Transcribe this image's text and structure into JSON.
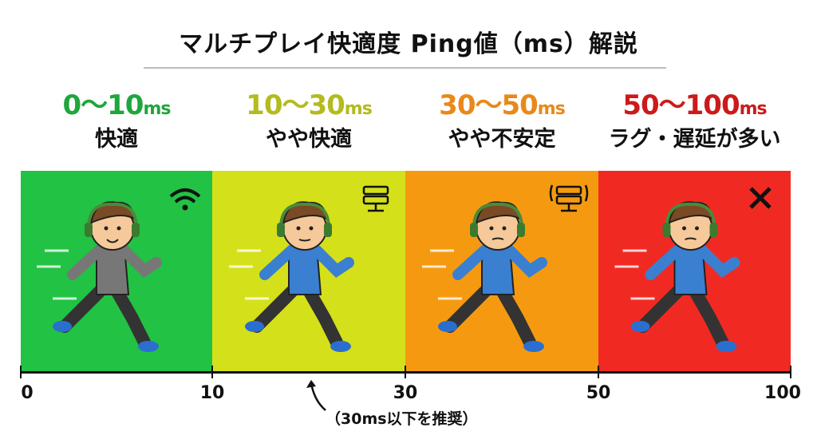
{
  "title": "マルチプレイ快適度 Ping値（ms）解説",
  "zones": [
    {
      "range": "0〜10",
      "unit": "ms",
      "label": "快適",
      "color": "#22c244",
      "text_color": "#1fa63c",
      "icon": "wifi-icon",
      "shirt": "#777777"
    },
    {
      "range": "10〜30",
      "unit": "ms",
      "label": "やや快適",
      "color": "#d4e01a",
      "text_color": "#b3bb1e",
      "icon": "server-icon",
      "shirt": "#3a7fd0"
    },
    {
      "range": "30〜50",
      "unit": "ms",
      "label": "やや不安定",
      "color": "#f59a10",
      "text_color": "#e8891a",
      "icon": "server-signal-icon",
      "shirt": "#3a7fd0"
    },
    {
      "range": "50〜100",
      "unit": "ms",
      "label": "ラグ・遅延が多い",
      "color": "#f02a22",
      "text_color": "#cc1a1a",
      "icon": "x-icon",
      "shirt": "#3a7fd0"
    }
  ],
  "axis": {
    "ticks": [
      "0",
      "10",
      "30",
      "50",
      "100"
    ]
  },
  "note": "（30ms以下を推奨）"
}
